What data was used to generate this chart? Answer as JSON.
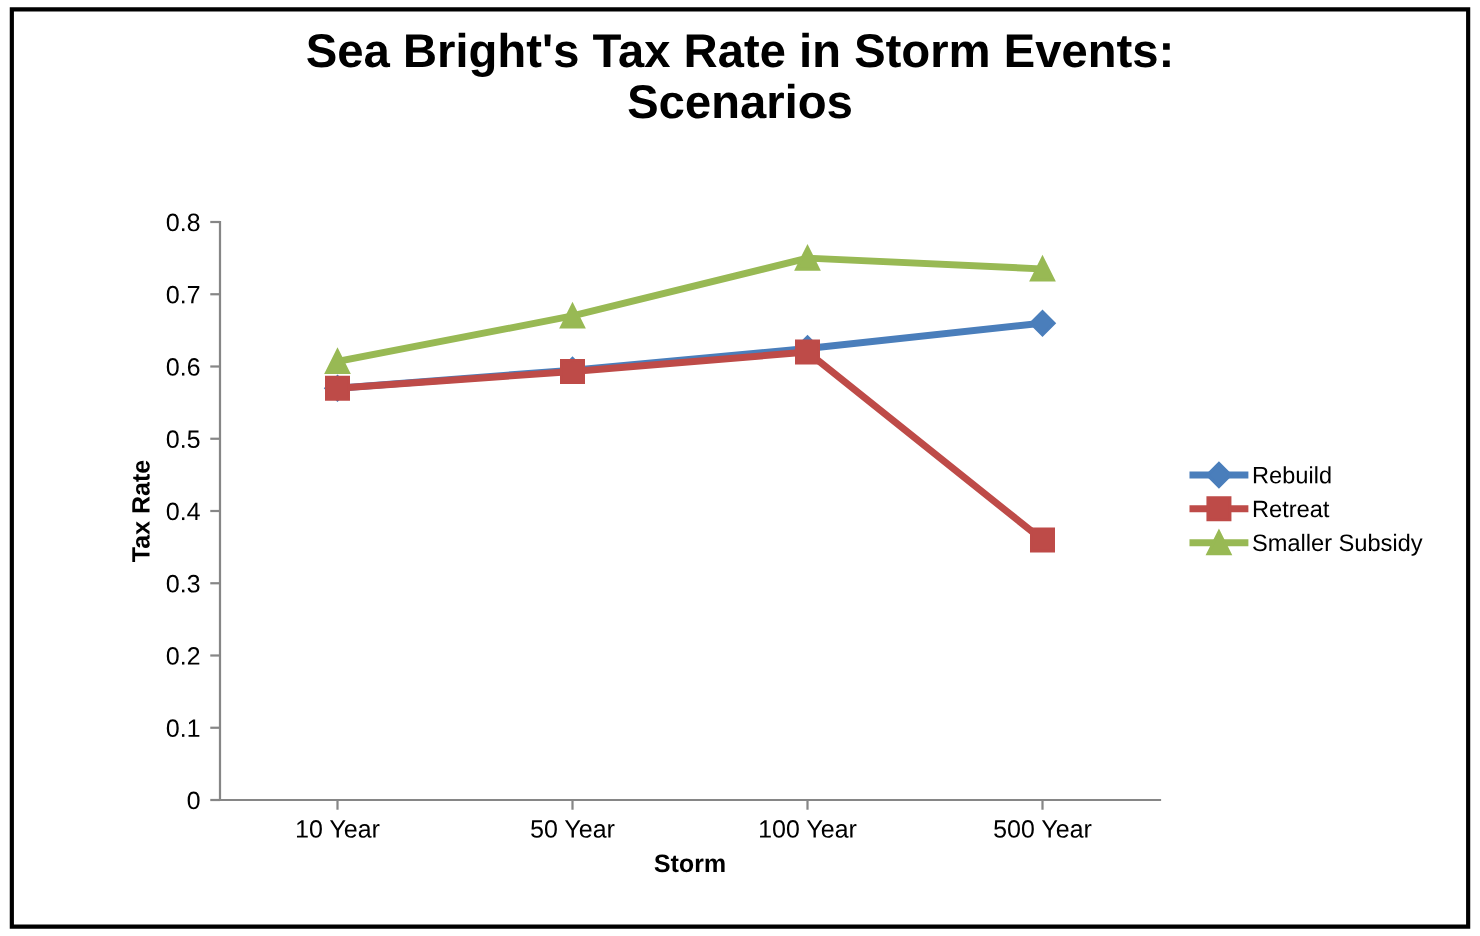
{
  "chart_data": {
    "type": "line",
    "title": "Sea Bright's Tax Rate in Storm Events:\nScenarios",
    "xlabel": "Storm",
    "ylabel": "Tax Rate",
    "categories": [
      "10 Year",
      "50 Year",
      "100 Year",
      "500 Year"
    ],
    "series": [
      {
        "name": "Rebuild",
        "color": "#4a7ebb",
        "marker": "diamond",
        "values": [
          0.57,
          0.595,
          0.625,
          0.66
        ]
      },
      {
        "name": "Retreat",
        "color": "#be4b48",
        "marker": "square",
        "values": [
          0.57,
          0.593,
          0.62,
          0.36
        ]
      },
      {
        "name": "Smaller Subsidy",
        "color": "#98b954",
        "marker": "triangle",
        "values": [
          0.607,
          0.67,
          0.75,
          0.735
        ]
      }
    ],
    "ylim": [
      0,
      0.8
    ],
    "yticks": [
      0,
      0.1,
      0.2,
      0.3,
      0.4,
      0.5,
      0.6,
      0.7,
      0.8
    ],
    "grid": false,
    "legend": "right",
    "line_style": "solid"
  }
}
